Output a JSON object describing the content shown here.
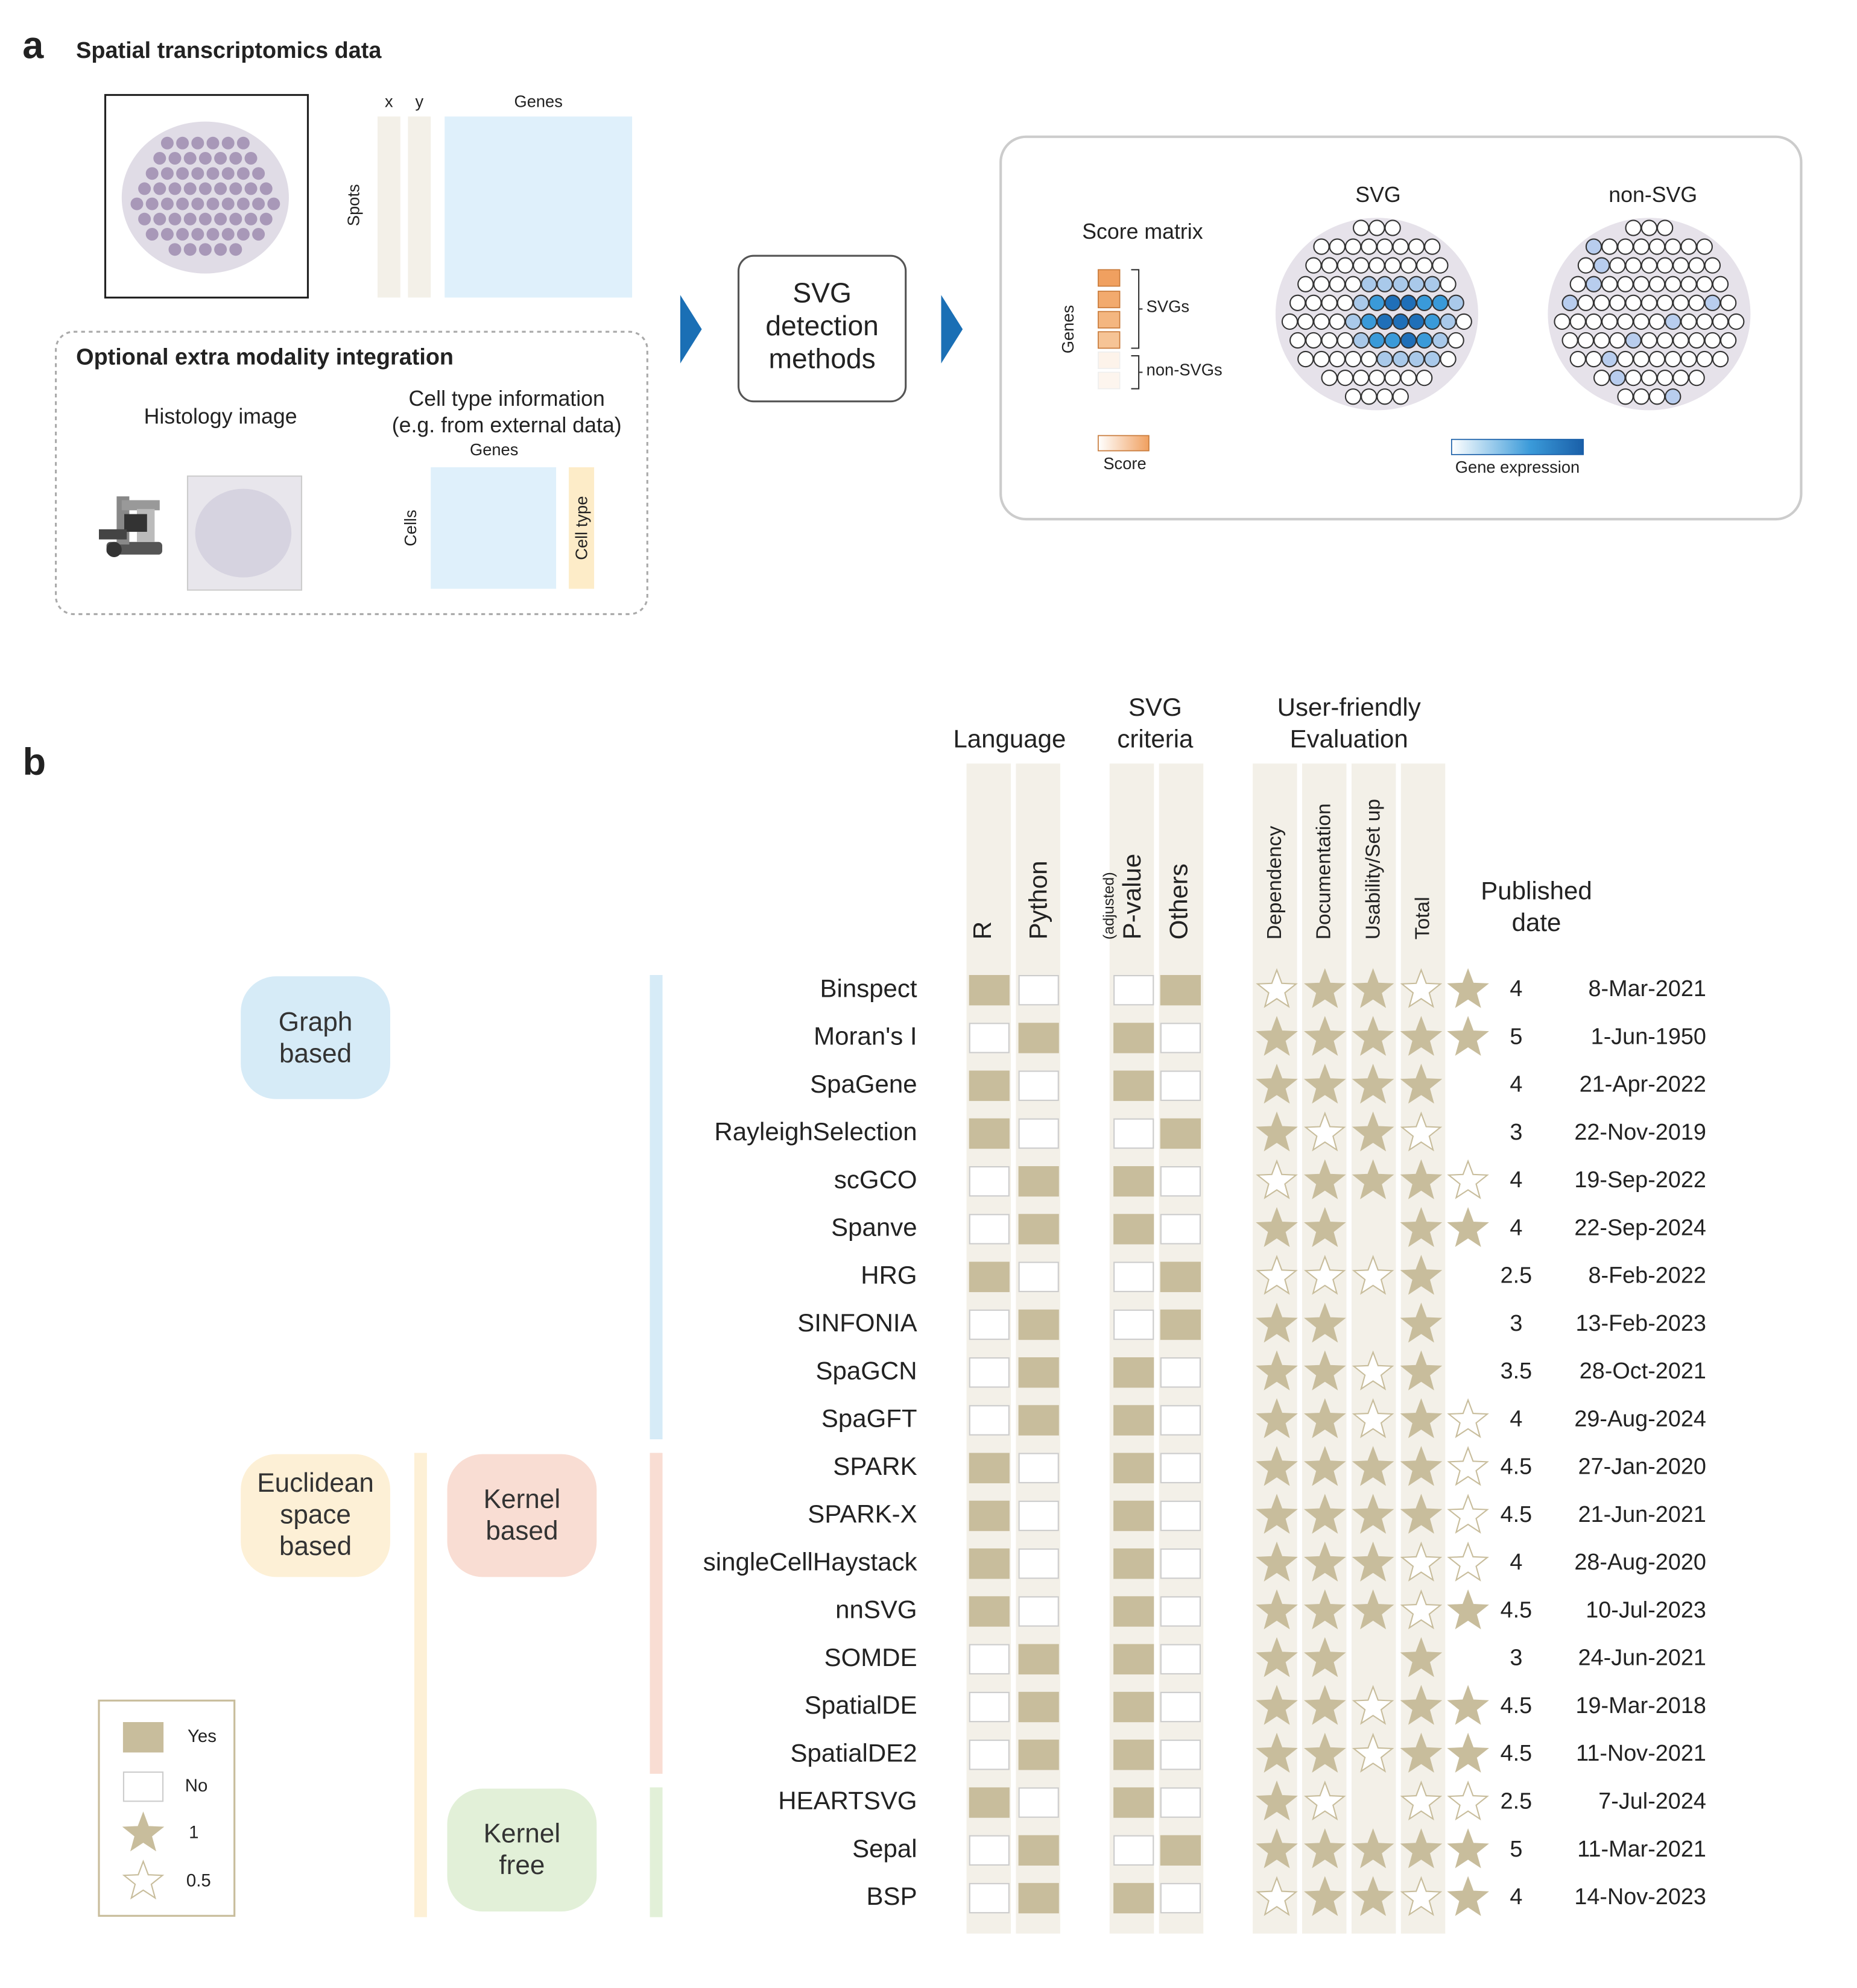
{
  "panel_a": {
    "label": "a",
    "title": "Spatial transcriptomics data",
    "x": "x",
    "y": "y",
    "genes": "Genes",
    "spots": "Spots",
    "optional_title": "Optional extra modality integration",
    "histology": "Histology image",
    "cell_type_info": [
      "Cell type information",
      "(e.g. from external data)"
    ],
    "genes2": "Genes",
    "cells": "Cells",
    "cell_type": "Cell type",
    "method_box": [
      "SVG",
      "detection",
      "methods"
    ],
    "score_matrix": "Score matrix",
    "genes3": "Genes",
    "svgs": "SVGs",
    "non_svgs": "non-SVGs",
    "score": "Score",
    "svg_title": "SVG",
    "non_svg_title": "non-SVG",
    "gene_expression": "Gene expression"
  },
  "panel_b": {
    "label": "b",
    "headers": {
      "language": "Language",
      "criteria": [
        "SVG",
        "criteria"
      ],
      "user_friendly": [
        "User-friendly",
        "Evaluation"
      ],
      "r": "R",
      "python": "Python",
      "p_value_note": "(adjusted)",
      "p_value": "P-value",
      "others": "Others",
      "dependency": "Dependency",
      "documentation": "Documentation",
      "usability": "Usability/Set up",
      "total": "Total",
      "published": [
        "Published",
        "date"
      ]
    },
    "legend": {
      "yes": "Yes",
      "no": "No",
      "star_full": 1,
      "star_half": 0.5
    },
    "groups": [
      {
        "label": "Graph based",
        "color": "#d6ebf7",
        "methods": [
          {
            "name": "Binspect",
            "r": true,
            "python": false,
            "p_value": false,
            "others": true,
            "stars": [
              0.5,
              1,
              1,
              0.5,
              1
            ],
            "total": 4,
            "date": "8-Mar-2021"
          },
          {
            "name": "Moran's I",
            "r": false,
            "python": true,
            "p_value": true,
            "others": false,
            "stars": [
              1,
              1,
              1,
              1,
              1
            ],
            "total": 5,
            "date": "1-Jun-1950"
          },
          {
            "name": "SpaGene",
            "r": true,
            "python": false,
            "p_value": true,
            "others": false,
            "stars": [
              1,
              1,
              1,
              1,
              null
            ],
            "total": 4,
            "date": "21-Apr-2022"
          },
          {
            "name": "RayleighSelection",
            "r": true,
            "python": false,
            "p_value": false,
            "others": true,
            "stars": [
              1,
              0.5,
              1,
              0.5,
              null
            ],
            "total": 3,
            "date": "22-Nov-2019"
          },
          {
            "name": "scGCO",
            "r": false,
            "python": true,
            "p_value": true,
            "others": false,
            "stars": [
              0.5,
              1,
              1,
              1,
              0.5
            ],
            "total": 4,
            "date": "19-Sep-2022"
          },
          {
            "name": "Spanve",
            "r": false,
            "python": true,
            "p_value": true,
            "others": false,
            "stars": [
              1,
              1,
              null,
              1,
              1
            ],
            "total": 4,
            "date": "22-Sep-2024"
          },
          {
            "name": "HRG",
            "r": true,
            "python": false,
            "p_value": false,
            "others": true,
            "stars": [
              0.5,
              0.5,
              0.5,
              1,
              null
            ],
            "total": 2.5,
            "date": "8-Feb-2022"
          },
          {
            "name": "SINFONIA",
            "r": false,
            "python": true,
            "p_value": false,
            "others": true,
            "stars": [
              1,
              1,
              null,
              1,
              null
            ],
            "total": 3,
            "date": "13-Feb-2023"
          },
          {
            "name": "SpaGCN",
            "r": false,
            "python": true,
            "p_value": true,
            "others": false,
            "stars": [
              1,
              1,
              0.5,
              1,
              null
            ],
            "total": 3.5,
            "date": "28-Oct-2021"
          },
          {
            "name": "SpaGFT",
            "r": false,
            "python": true,
            "p_value": true,
            "others": false,
            "stars": [
              1,
              1,
              0.5,
              1,
              0.5
            ],
            "total": 4,
            "date": "29-Aug-2024"
          }
        ]
      },
      {
        "label": "Euclidean space based",
        "color": "#fdf0d6",
        "subgroups": [
          {
            "label": "Kernel based",
            "color": "#f9ddd3",
            "methods": [
              {
                "name": "SPARK",
                "r": true,
                "python": false,
                "p_value": true,
                "others": false,
                "stars": [
                  1,
                  1,
                  1,
                  1,
                  0.5
                ],
                "total": 4.5,
                "date": "27-Jan-2020"
              },
              {
                "name": "SPARK-X",
                "r": true,
                "python": false,
                "p_value": true,
                "others": false,
                "stars": [
                  1,
                  1,
                  1,
                  1,
                  0.5
                ],
                "total": 4.5,
                "date": "21-Jun-2021"
              },
              {
                "name": "singleCellHaystack",
                "r": true,
                "python": false,
                "p_value": true,
                "others": false,
                "stars": [
                  1,
                  1,
                  1,
                  0.5,
                  0.5
                ],
                "total": 4,
                "date": "28-Aug-2020"
              },
              {
                "name": "nnSVG",
                "r": true,
                "python": false,
                "p_value": true,
                "others": false,
                "stars": [
                  1,
                  1,
                  1,
                  0.5,
                  1
                ],
                "total": 4.5,
                "date": "10-Jul-2023"
              },
              {
                "name": "SOMDE",
                "r": false,
                "python": true,
                "p_value": true,
                "others": false,
                "stars": [
                  1,
                  1,
                  null,
                  1,
                  null
                ],
                "total": 3,
                "date": "24-Jun-2021"
              },
              {
                "name": "SpatialDE",
                "r": false,
                "python": true,
                "p_value": true,
                "others": false,
                "stars": [
                  1,
                  1,
                  0.5,
                  1,
                  1
                ],
                "total": 4.5,
                "date": "19-Mar-2018"
              },
              {
                "name": "SpatialDE2",
                "r": false,
                "python": true,
                "p_value": true,
                "others": false,
                "stars": [
                  1,
                  1,
                  0.5,
                  1,
                  1
                ],
                "total": 4.5,
                "date": "11-Nov-2021"
              }
            ]
          },
          {
            "label": "Kernel free",
            "color": "#e2f0d8",
            "methods": [
              {
                "name": "HEARTSVG",
                "r": true,
                "python": false,
                "p_value": true,
                "others": false,
                "stars": [
                  1,
                  0.5,
                  null,
                  0.5,
                  0.5
                ],
                "total": 2.5,
                "date": "7-Jul-2024"
              },
              {
                "name": "Sepal",
                "r": false,
                "python": true,
                "p_value": false,
                "others": true,
                "stars": [
                  1,
                  1,
                  1,
                  1,
                  1
                ],
                "total": 5,
                "date": "11-Mar-2021"
              },
              {
                "name": "BSP",
                "r": false,
                "python": true,
                "p_value": true,
                "others": false,
                "stars": [
                  0.5,
                  1,
                  1,
                  0.5,
                  1
                ],
                "total": 4,
                "date": "14-Nov-2023"
              }
            ]
          }
        ]
      }
    ]
  }
}
